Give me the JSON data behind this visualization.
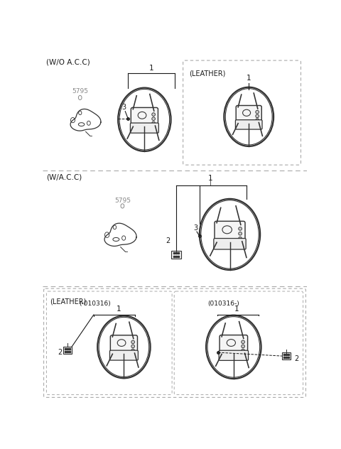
{
  "bg_color": "#ffffff",
  "line_color": "#1a1a1a",
  "dash_color": "#999999",
  "text_color": "#1a1a1a",
  "gray_text": "#888888",
  "section1_label": "(W/O A.C.C)",
  "section2_label": "(W/A.C.C)",
  "leather_label": "(LEATHER)",
  "leather_sub1": "(-010316)",
  "leather_sub2": "(010316-)",
  "part_5795": "5795",
  "num1": "1",
  "num2": "2",
  "num3": "3",
  "fig_width": 4.8,
  "fig_height": 6.32,
  "dpi": 100
}
